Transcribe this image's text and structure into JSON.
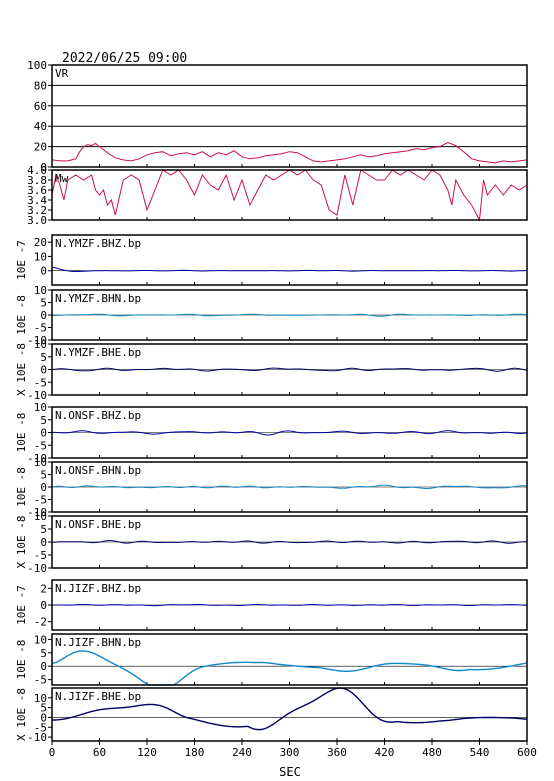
{
  "header": {
    "datetime": "2022/06/25 09:00"
  },
  "chart_data": {
    "type": "line",
    "xlabel": "SEC",
    "xlim": [
      0,
      600
    ],
    "xticks": [
      0,
      60,
      120,
      180,
      240,
      300,
      360,
      420,
      480,
      540,
      600
    ],
    "panels": [
      {
        "label": "VR",
        "ylim": [
          0,
          100
        ],
        "yticks": [
          0,
          20,
          40,
          60,
          80,
          100
        ],
        "grid": true,
        "series_color": "#cc1144",
        "x": [
          0,
          10,
          20,
          30,
          35,
          40,
          45,
          50,
          55,
          60,
          65,
          70,
          80,
          90,
          100,
          110,
          120,
          130,
          140,
          150,
          160,
          170,
          180,
          190,
          200,
          210,
          220,
          230,
          240,
          250,
          260,
          270,
          280,
          290,
          300,
          310,
          320,
          330,
          340,
          350,
          360,
          370,
          380,
          390,
          400,
          410,
          420,
          430,
          440,
          450,
          460,
          470,
          480,
          490,
          500,
          510,
          520,
          530,
          540,
          550,
          560,
          570,
          580,
          590,
          600
        ],
        "values": [
          7,
          6,
          6,
          8,
          15,
          20,
          22,
          21,
          23,
          20,
          17,
          14,
          9,
          7,
          6,
          8,
          12,
          14,
          15,
          11,
          13,
          14,
          12,
          15,
          10,
          14,
          12,
          16,
          10,
          8,
          9,
          11,
          12,
          13,
          15,
          14,
          10,
          6,
          5,
          6,
          7,
          8,
          10,
          12,
          10,
          11,
          13,
          14,
          15,
          16,
          18,
          17,
          19,
          20,
          24,
          21,
          15,
          8,
          6,
          5,
          4,
          6,
          5,
          6,
          7
        ]
      },
      {
        "label": "Mw",
        "ylim": [
          3.0,
          4.0
        ],
        "yticks": [
          3.0,
          3.2,
          3.4,
          3.6,
          3.8,
          4.0
        ],
        "ytick_labels": [
          "3.0",
          "3.2",
          "3.4",
          "3.6",
          "3.8",
          "4.0"
        ],
        "grid": false,
        "series_color": "#cc1144",
        "x": [
          0,
          5,
          10,
          15,
          20,
          30,
          40,
          50,
          55,
          60,
          65,
          70,
          75,
          80,
          90,
          100,
          110,
          120,
          130,
          140,
          150,
          160,
          170,
          180,
          190,
          200,
          210,
          220,
          230,
          240,
          250,
          260,
          270,
          280,
          290,
          300,
          310,
          320,
          330,
          340,
          350,
          360,
          370,
          380,
          390,
          400,
          410,
          420,
          430,
          440,
          450,
          460,
          470,
          480,
          490,
          500,
          505,
          510,
          520,
          530,
          540,
          545,
          550,
          560,
          570,
          580,
          590,
          600
        ],
        "values": [
          3.5,
          3.9,
          3.7,
          3.4,
          3.8,
          3.9,
          3.8,
          3.9,
          3.6,
          3.5,
          3.6,
          3.3,
          3.4,
          3.1,
          3.8,
          3.9,
          3.8,
          3.2,
          3.6,
          4.0,
          3.9,
          4.0,
          3.8,
          3.5,
          3.9,
          3.7,
          3.6,
          3.9,
          3.4,
          3.8,
          3.3,
          3.6,
          3.9,
          3.8,
          3.9,
          4.0,
          3.9,
          4.0,
          3.8,
          3.7,
          3.2,
          3.1,
          3.9,
          3.3,
          4.0,
          3.9,
          3.8,
          3.8,
          4.0,
          3.9,
          4.0,
          3.9,
          3.8,
          4.0,
          3.9,
          3.6,
          3.3,
          3.8,
          3.5,
          3.3,
          3.0,
          3.8,
          3.5,
          3.7,
          3.5,
          3.7,
          3.6,
          3.7
        ]
      },
      {
        "label": "N.YMZF.BHZ.bp",
        "unit": "10E -7",
        "ylim": [
          -10,
          25
        ],
        "yticks": [
          0,
          10,
          20
        ],
        "series_color": "#0000aa",
        "seed": 11,
        "amp_mode": "decay",
        "amp": 0.25
      },
      {
        "label": "N.YMZF.BHN.bp",
        "unit": "10E -8",
        "ylim": [
          -10,
          10
        ],
        "yticks": [
          -10,
          -5,
          0,
          5,
          10
        ],
        "series_color": "#1188cc",
        "seed": 12,
        "amp_mode": "flat",
        "amp": 0.35
      },
      {
        "label": "N.YMZF.BHE.bp",
        "unit": "X 10E -8",
        "ylim": [
          -10,
          10
        ],
        "yticks": [
          -10,
          -5,
          0,
          5,
          10
        ],
        "series_color": "#000066",
        "seed": 13,
        "amp_mode": "flat",
        "amp": 0.9
      },
      {
        "label": "N.ONSF.BHZ.bp",
        "unit": "10E -8",
        "ylim": [
          -10,
          10
        ],
        "yticks": [
          -10,
          -5,
          0,
          5,
          10
        ],
        "series_color": "#0000aa",
        "seed": 14,
        "amp_mode": "flat",
        "amp": 0.6
      },
      {
        "label": "N.ONSF.BHN.bp",
        "unit": "10E -8",
        "ylim": [
          -10,
          10
        ],
        "yticks": [
          -10,
          -5,
          0,
          5,
          10
        ],
        "series_color": "#1188cc",
        "seed": 15,
        "amp_mode": "flat",
        "amp": 0.6
      },
      {
        "label": "N.ONSF.BHE.bp",
        "unit": "X 10E -8",
        "ylim": [
          -10,
          10
        ],
        "yticks": [
          -10,
          -5,
          0,
          5,
          10
        ],
        "series_color": "#000066",
        "seed": 16,
        "amp_mode": "flat",
        "amp": 0.5
      },
      {
        "label": "N.JIZF.BHZ.bp",
        "unit": "10E -7",
        "ylim": [
          -3,
          3
        ],
        "yticks": [
          -2,
          0,
          2
        ],
        "series_color": "#0000aa",
        "seed": 17,
        "amp_mode": "flat",
        "amp": 0.08
      },
      {
        "label": "N.JIZF.BHN.bp",
        "unit": "10E -8",
        "ylim": [
          -7,
          12
        ],
        "yticks": [
          -5,
          0,
          5,
          10
        ],
        "series_color": "#1188cc",
        "seed": 18,
        "amp_mode": "big",
        "amp": 6.0
      },
      {
        "label": "N.JIZF.BHE.bp",
        "unit": "X 10E -8",
        "ylim": [
          -12,
          15
        ],
        "yticks": [
          -10,
          -5,
          0,
          5,
          10
        ],
        "series_color": "#000066",
        "seed": 19,
        "amp_mode": "big",
        "amp": 8.0
      }
    ]
  }
}
